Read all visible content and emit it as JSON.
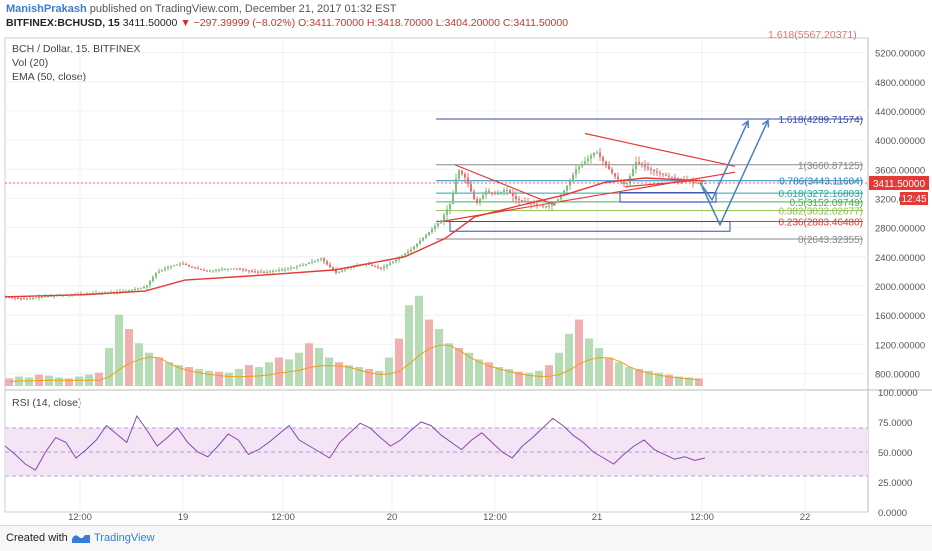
{
  "header": {
    "author": "ManishPrakash",
    "published": "published on TradingView.com, December 21, 2017 01:32 EST",
    "symbol": "BITFINEX:BCHUSD, 15",
    "last": "3411.50000",
    "change": "▼ −297.39999 (−8.02%)",
    "ohlc": "O:3411.70000 H:3418.70000 L:3404.20000 C:3411.50000"
  },
  "legend": {
    "title": "BCH / Dollar, 15, BITFINEX",
    "vol": "Vol (20)",
    "ema": "EMA (50, close)",
    "rsi": "RSI (14, close)"
  },
  "price_badge": {
    "value": "3411.50000",
    "time": "12:45"
  },
  "footer": {
    "created": "Created with",
    "brand": "TradingView"
  },
  "colors": {
    "up": "#7fbf7f",
    "down": "#e57373",
    "ema": "#e53935",
    "fib_top": "#3949ab",
    "trend": "#e53935",
    "rsi": "#8e44ad",
    "rsi_band": "#f3e5f5",
    "arrow": "#4a7fc1"
  },
  "chart_data": [
    {
      "type": "candlestick",
      "x_ticks": [
        "12:00",
        "19",
        "12:00",
        "20",
        "12:00",
        "21",
        "12:00",
        "22"
      ],
      "y_ticks": [
        "5200.00000",
        "4800.00000",
        "4400.00000",
        "4000.00000",
        "3600.00000",
        "3200.00000",
        "2800.00000",
        "2400.00000",
        "2000.00000",
        "1600.00000",
        "1200.00000",
        "800.00000"
      ],
      "ylim": [
        600,
        5400
      ],
      "series_path": [
        [
          0,
          1850
        ],
        [
          20,
          1820
        ],
        [
          40,
          1860
        ],
        [
          60,
          1880
        ],
        [
          80,
          1900
        ],
        [
          100,
          1910
        ],
        [
          120,
          1930
        ],
        [
          140,
          1990
        ],
        [
          150,
          2180
        ],
        [
          160,
          2250
        ],
        [
          175,
          2310
        ],
        [
          185,
          2260
        ],
        [
          200,
          2200
        ],
        [
          215,
          2230
        ],
        [
          230,
          2240
        ],
        [
          245,
          2200
        ],
        [
          260,
          2190
        ],
        [
          280,
          2230
        ],
        [
          300,
          2300
        ],
        [
          315,
          2380
        ],
        [
          322,
          2280
        ],
        [
          330,
          2180
        ],
        [
          345,
          2260
        ],
        [
          360,
          2300
        ],
        [
          375,
          2240
        ],
        [
          390,
          2360
        ],
        [
          405,
          2500
        ],
        [
          420,
          2700
        ],
        [
          435,
          2900
        ],
        [
          445,
          3150
        ],
        [
          452,
          3600
        ],
        [
          460,
          3470
        ],
        [
          470,
          3120
        ],
        [
          480,
          3300
        ],
        [
          490,
          3250
        ],
        [
          500,
          3330
        ],
        [
          510,
          3190
        ],
        [
          520,
          3150
        ],
        [
          530,
          3120
        ],
        [
          540,
          3080
        ],
        [
          550,
          3150
        ],
        [
          560,
          3350
        ],
        [
          570,
          3600
        ],
        [
          580,
          3720
        ],
        [
          590,
          3850
        ],
        [
          600,
          3650
        ],
        [
          610,
          3480
        ],
        [
          620,
          3380
        ],
        [
          630,
          3700
        ],
        [
          640,
          3620
        ],
        [
          650,
          3560
        ],
        [
          660,
          3510
        ],
        [
          670,
          3470
        ],
        [
          680,
          3440
        ],
        [
          690,
          3410
        ],
        [
          700,
          3411
        ]
      ],
      "ema_path": [
        [
          0,
          1850
        ],
        [
          80,
          1880
        ],
        [
          140,
          1930
        ],
        [
          180,
          2080
        ],
        [
          260,
          2150
        ],
        [
          330,
          2220
        ],
        [
          400,
          2400
        ],
        [
          440,
          2650
        ],
        [
          470,
          2950
        ],
        [
          520,
          3120
        ],
        [
          560,
          3250
        ],
        [
          600,
          3420
        ],
        [
          640,
          3480
        ],
        [
          700,
          3440
        ]
      ],
      "fib_levels": [
        {
          "label": "1.618(4289.71574)",
          "value": 4289.71574,
          "color": "#3949ab"
        },
        {
          "label": "1(3660.87125)",
          "value": 3660.87125,
          "color": "#888888"
        },
        {
          "label": "0.786(3443.11604)",
          "value": 3443.11604,
          "color": "#1e88c4"
        },
        {
          "label": "0.618(3272.16803)",
          "value": 3272.16803,
          "color": "#26a69a"
        },
        {
          "label": "0.5(3152.09749)",
          "value": 3152.09749,
          "color": "#4caf50"
        },
        {
          "label": "0.382(3032.02677)",
          "value": 3032.02677,
          "color": "#8bc34a"
        },
        {
          "label": "0.236(2883.46480)",
          "value": 2883.4648,
          "color": "#e53935"
        },
        {
          "label": "0(2643.32355)",
          "value": 2643.32355,
          "color": "#888888"
        }
      ],
      "clipped_label": "1.618(5567.20371)"
    },
    {
      "type": "bar",
      "name": "",
      "ylim": [
        0,
        100
      ],
      "values": [
        8,
        10,
        9,
        12,
        11,
        9,
        8,
        10,
        12,
        14,
        40,
        75,
        60,
        45,
        35,
        30,
        25,
        22,
        20,
        18,
        16,
        15,
        14,
        18,
        22,
        20,
        25,
        30,
        28,
        35,
        45,
        40,
        30,
        25,
        22,
        20,
        18,
        16,
        30,
        50,
        85,
        95,
        70,
        60,
        45,
        40,
        35,
        28,
        25,
        20,
        18,
        15,
        14,
        16,
        22,
        35,
        55,
        70,
        50,
        40,
        30,
        25,
        20,
        18,
        16,
        14,
        12,
        10,
        9,
        8
      ]
    },
    {
      "type": "line",
      "ylim": [
        0,
        100
      ],
      "y_ticks": [
        "100.0000",
        "75.0000",
        "50.0000",
        "25.0000",
        "0.0000"
      ],
      "band": [
        30,
        70
      ],
      "values": [
        55,
        48,
        40,
        35,
        50,
        62,
        58,
        45,
        52,
        60,
        72,
        65,
        58,
        80,
        68,
        55,
        62,
        70,
        58,
        50,
        46,
        55,
        65,
        60,
        48,
        52,
        58,
        65,
        72,
        60,
        55,
        50,
        45,
        58,
        66,
        74,
        70,
        62,
        55,
        60,
        68,
        75,
        72,
        64,
        58,
        52,
        60,
        66,
        58,
        50,
        45,
        55,
        62,
        70,
        78,
        72,
        64,
        58,
        50,
        45,
        40,
        48,
        55,
        60,
        52,
        48,
        44,
        46,
        43,
        45
      ]
    }
  ]
}
